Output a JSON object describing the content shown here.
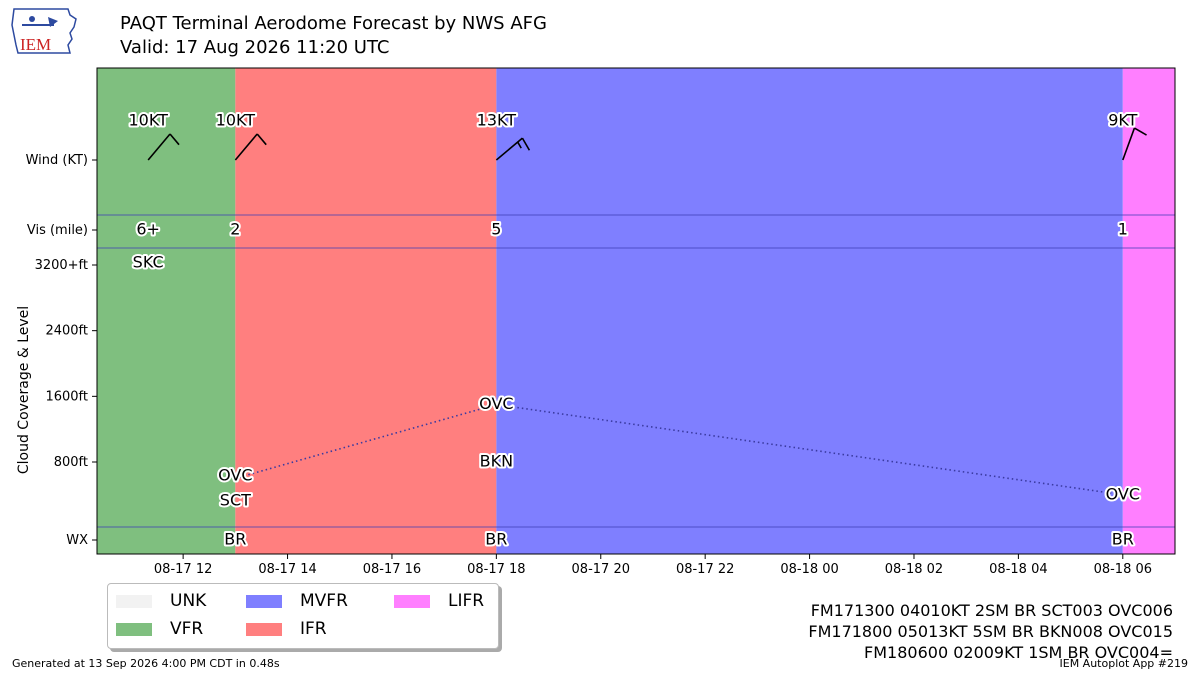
{
  "header": {
    "title": "PAQT Terminal Aerodome Forecast by NWS AFG",
    "subtitle": "Valid: 17 Aug 2026 11:20 UTC"
  },
  "logo": {
    "text": "IEM"
  },
  "colors": {
    "UNK": "#f2f2f2",
    "VFR": "#7fbf7f",
    "MVFR": "#7f7fff",
    "IFR": "#ff7f7f",
    "LIFR": "#ff7fff"
  },
  "chart_data": {
    "type": "timeline",
    "x_ticks": [
      "08-17 12",
      "08-17 14",
      "08-17 16",
      "08-17 18",
      "08-17 20",
      "08-17 22",
      "08-18 00",
      "08-18 02",
      "08-18 04",
      "08-18 06"
    ],
    "x_range_hours": [
      10.35,
      31.0
    ],
    "row_labels": {
      "wind": "Wind (KT)",
      "vis": "Vis (mile)",
      "wx": "WX"
    },
    "ylabel": "Cloud Coverage & Level",
    "y_ticks": [
      "3200+ft",
      "2400ft",
      "1600ft",
      "800ft"
    ],
    "y_tick_values": [
      3200,
      2400,
      1600,
      800
    ],
    "y_range_ft": [
      -800,
      3400
    ],
    "categories": [
      {
        "start": 10.35,
        "end": 13.0,
        "category": "VFR"
      },
      {
        "start": 13.0,
        "end": 18.0,
        "category": "IFR"
      },
      {
        "start": 18.0,
        "end": 30.0,
        "category": "MVFR"
      },
      {
        "start": 30.0,
        "end": 31.0,
        "category": "LIFR"
      }
    ],
    "periods": [
      {
        "t": 11.33,
        "wind_label": "10KT",
        "wind_dir": 40,
        "wind_kt": 10,
        "vis": "6+",
        "wx": "",
        "clouds": [
          {
            "cover": "SKC",
            "level": 3200
          }
        ]
      },
      {
        "t": 13.0,
        "wind_label": "10KT",
        "wind_dir": 40,
        "wind_kt": 10,
        "vis": "2",
        "wx": "BR",
        "clouds": [
          {
            "cover": "SCT",
            "level": 300
          },
          {
            "cover": "OVC",
            "level": 600
          }
        ]
      },
      {
        "t": 18.0,
        "wind_label": "13KT",
        "wind_dir": 50,
        "wind_kt": 13,
        "vis": "5",
        "wx": "BR",
        "clouds": [
          {
            "cover": "BKN",
            "level": 800
          },
          {
            "cover": "OVC",
            "level": 1500
          }
        ]
      },
      {
        "t": 30.0,
        "wind_label": "9KT",
        "wind_dir": 20,
        "wind_kt": 9,
        "vis": "1",
        "wx": "BR",
        "clouds": [
          {
            "cover": "OVC",
            "level": 400
          }
        ]
      }
    ],
    "ceiling_line": [
      [
        13.0,
        600
      ],
      [
        18.0,
        1500
      ],
      [
        30.0,
        400
      ]
    ],
    "legend": [
      "UNK",
      "VFR",
      "MVFR",
      "IFR",
      "LIFR"
    ],
    "legend_placement": "bottom-left"
  },
  "taf_lines": [
    "FM171300 04010KT 2SM BR SCT003 OVC006",
    "FM171800 05013KT 5SM BR BKN008 OVC015",
    "FM180600 02009KT 1SM BR OVC004="
  ],
  "footer": {
    "generated": "Generated at 13 Sep 2026 4:00 PM CDT in 0.48s",
    "app": "IEM Autoplot App #219"
  }
}
